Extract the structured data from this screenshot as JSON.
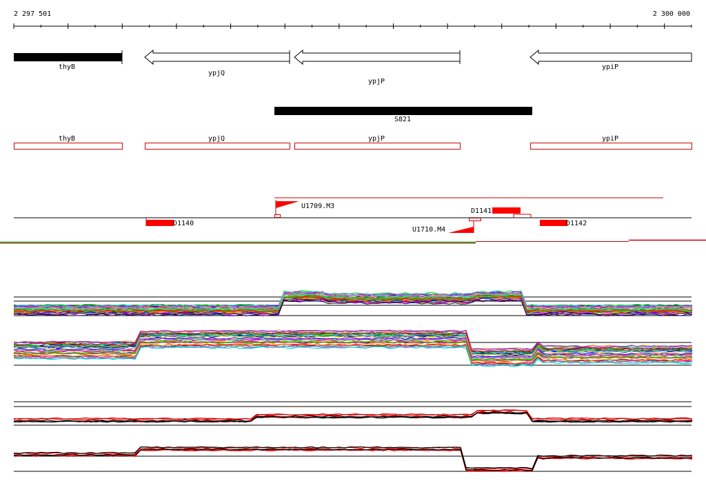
{
  "ruler": {
    "start_label": "2 297 501",
    "end_label": "2 300 000",
    "start_bp": 2297501,
    "end_bp": 2300000,
    "tick_step_bp": 100
  },
  "genes": [
    {
      "name": "thyB",
      "start_bp": 2297501,
      "end_bp": 2297900,
      "strand": "+",
      "style": "filled"
    },
    {
      "name": "ypjQ",
      "start_bp": 2297981,
      "end_bp": 2298520,
      "strand": "-",
      "style": "arrow"
    },
    {
      "name": "ypjP",
      "start_bp": 2298536,
      "end_bp": 2299144,
      "strand": "-",
      "style": "arrow"
    },
    {
      "name": "ypiP",
      "start_bp": 2299401,
      "end_bp": 2300000,
      "strand": "-",
      "style": "arrow"
    }
  ],
  "region": {
    "name": "S821",
    "start_bp": 2298517,
    "end_bp": 2299470
  },
  "gene_boxes": [
    {
      "name": "thyB",
      "start_bp": 2297501,
      "end_bp": 2297900
    },
    {
      "name": "ypjQ",
      "start_bp": 2297981,
      "end_bp": 2298520
    },
    {
      "name": "ypjP",
      "start_bp": 2298536,
      "end_bp": 2299144
    },
    {
      "name": "ypiP",
      "start_bp": 2299401,
      "end_bp": 2300000
    }
  ],
  "features": [
    {
      "label": "U1709.M3",
      "type": "flag-up"
    },
    {
      "label": "D1140",
      "type": "block"
    },
    {
      "label": "D1141",
      "type": "block"
    },
    {
      "label": "U1710.M4",
      "type": "flag-down"
    },
    {
      "label": "D1142",
      "type": "block"
    }
  ],
  "colors": {
    "gene_fill": "#000000",
    "box_stroke": "#cc0000",
    "feature_red": "#ff0000",
    "separator_green": "#00aa00",
    "separator_red": "#cc0000"
  }
}
